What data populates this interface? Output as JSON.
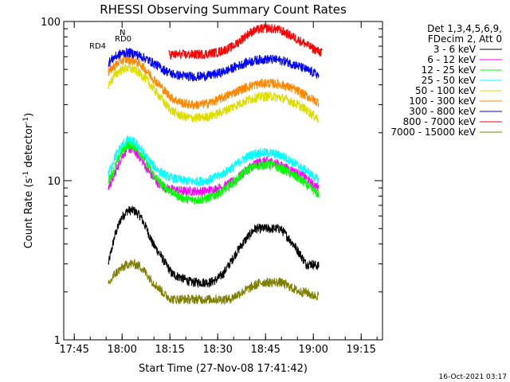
{
  "chart_data": {
    "type": "line",
    "title": "RHESSI Observing Summary Count Rates",
    "xlabel": "Start Time (27-Nov-08 17:41:42)",
    "ylabel_main": "Count Rate (s",
    "ylabel_sup": "-1",
    "ylabel_tail": " detector",
    "ylabel_end": ")",
    "x_unit": "minutes after 17:41:42",
    "xlim": [
      0,
      100
    ],
    "ylim": [
      1,
      100
    ],
    "log_y": true,
    "grid": false,
    "x_ticks": [
      {
        "label": "17:45",
        "t": 3.3
      },
      {
        "label": "18:00",
        "t": 18.3
      },
      {
        "label": "18:15",
        "t": 33.3
      },
      {
        "label": "18:30",
        "t": 48.3
      },
      {
        "label": "18:45",
        "t": 63.3
      },
      {
        "label": "19:00",
        "t": 78.3
      },
      {
        "label": "19:15",
        "t": 93.3
      }
    ],
    "y_ticks": [
      {
        "label": "1",
        "v": 1
      },
      {
        "label": "10",
        "v": 10
      },
      {
        "label": "100",
        "v": 100
      }
    ],
    "legend_header": [
      "Det 1,3,4,5,6,9,",
      "FDecim 2, Att 0"
    ],
    "legend_position": "right",
    "series": [
      {
        "name": "3 - 6 keV",
        "color": "#000000",
        "t": [
          14,
          16,
          18,
          20,
          22,
          24,
          26,
          28,
          30,
          32,
          34,
          36,
          38,
          40,
          42,
          44,
          46,
          48,
          50,
          52,
          54,
          56,
          58,
          60,
          62,
          64,
          66,
          68,
          70,
          72,
          74,
          76,
          78,
          80
        ],
        "v": [
          3,
          4.5,
          5.8,
          6.5,
          6.5,
          6,
          5,
          4,
          3.5,
          3,
          2.6,
          2.5,
          2.4,
          2.3,
          2.3,
          2.3,
          2.3,
          2.4,
          2.6,
          3,
          3.5,
          4,
          4.5,
          5,
          5,
          5,
          5,
          5,
          4.5,
          4,
          3.5,
          3,
          3,
          2.9
        ]
      },
      {
        "name": "6 - 12 keV",
        "color": "#ff00ff",
        "t": [
          14,
          16,
          18,
          20,
          22,
          24,
          26,
          28,
          30,
          32,
          34,
          36,
          38,
          40,
          42,
          44,
          46,
          48,
          50,
          52,
          54,
          56,
          58,
          60,
          62,
          64,
          66,
          68,
          70,
          72,
          74,
          76,
          78,
          80
        ],
        "v": [
          9,
          11,
          14,
          16,
          15.5,
          14,
          12,
          10.5,
          9.5,
          9,
          8.8,
          8.7,
          8.6,
          8.6,
          8.6,
          8.6,
          8.7,
          8.9,
          9.2,
          9.6,
          10.2,
          11,
          12,
          12.8,
          13.2,
          13.3,
          13,
          12.5,
          12,
          11.5,
          11,
          10.5,
          9.5,
          9
        ]
      },
      {
        "name": "12 - 25 keV",
        "color": "#00ff00",
        "t": [
          14,
          16,
          18,
          20,
          22,
          24,
          26,
          28,
          30,
          32,
          34,
          36,
          38,
          40,
          42,
          44,
          46,
          48,
          50,
          52,
          54,
          56,
          58,
          60,
          62,
          64,
          66,
          68,
          70,
          72,
          74,
          76,
          78,
          80
        ],
        "v": [
          10,
          12,
          15,
          17,
          16.5,
          15,
          13,
          11,
          9.8,
          9,
          8.5,
          8,
          7.7,
          7.6,
          7.6,
          7.7,
          7.9,
          8.2,
          8.7,
          9.3,
          10,
          11,
          11.8,
          12.3,
          12.6,
          12.6,
          12.4,
          12,
          11.4,
          10.8,
          10.2,
          9.5,
          8.8,
          8.2
        ]
      },
      {
        "name": "25 - 50 keV",
        "color": "#00ffff",
        "t": [
          14,
          16,
          18,
          20,
          22,
          24,
          26,
          28,
          30,
          32,
          34,
          36,
          38,
          40,
          42,
          44,
          46,
          48,
          50,
          52,
          54,
          56,
          58,
          60,
          62,
          64,
          66,
          68,
          70,
          72,
          74,
          76,
          78,
          80
        ],
        "v": [
          11,
          14,
          16.5,
          18,
          17.5,
          16,
          14,
          12.5,
          11.5,
          10.8,
          10.4,
          10.2,
          10,
          9.9,
          9.9,
          10,
          10.2,
          10.6,
          11.1,
          11.8,
          12.6,
          13.5,
          14.3,
          14.8,
          15,
          15,
          14.8,
          14.4,
          13.8,
          13,
          12.3,
          11.6,
          10.8,
          10
        ]
      },
      {
        "name": "50 - 100 keV",
        "color": "#dddd00",
        "t": [
          14,
          16,
          18,
          20,
          22,
          24,
          26,
          28,
          30,
          32,
          34,
          36,
          38,
          40,
          42,
          44,
          46,
          48,
          50,
          52,
          54,
          56,
          58,
          60,
          62,
          64,
          66,
          68,
          70,
          72,
          74,
          76,
          78,
          80
        ],
        "v": [
          40,
          46,
          50,
          51,
          50,
          47,
          43,
          38,
          34,
          30,
          27.5,
          26,
          25.2,
          24.8,
          24.8,
          25,
          25.5,
          26.3,
          27.3,
          28.5,
          29.8,
          31,
          32.3,
          33.2,
          33.8,
          34,
          33.8,
          33.2,
          32.3,
          31,
          29.5,
          28,
          26,
          24.5
        ]
      },
      {
        "name": "100 - 300 keV",
        "color": "#ff8800",
        "t": [
          14,
          16,
          18,
          20,
          22,
          24,
          26,
          28,
          30,
          32,
          34,
          36,
          38,
          40,
          42,
          44,
          46,
          48,
          50,
          52,
          54,
          56,
          58,
          60,
          62,
          64,
          66,
          68,
          70,
          72,
          74,
          76,
          78,
          80
        ],
        "v": [
          48,
          53,
          57,
          58,
          57,
          54,
          49,
          44,
          40,
          36,
          33,
          31.5,
          30.5,
          30,
          30,
          30.3,
          31,
          32,
          33.3,
          34.8,
          36.3,
          37.8,
          39.2,
          40.2,
          40.8,
          41,
          40.8,
          40.2,
          39.2,
          37.8,
          36,
          34.3,
          32.5,
          31
        ]
      },
      {
        "name": "300 - 800 keV",
        "color": "#0000ff",
        "t": [
          14,
          16,
          18,
          20,
          22,
          24,
          26,
          28,
          30,
          32,
          34,
          36,
          38,
          40,
          42,
          44,
          46,
          48,
          50,
          52,
          54,
          56,
          58,
          60,
          62,
          64,
          66,
          68,
          70,
          72,
          74,
          76,
          78,
          80
        ],
        "v": [
          55,
          60,
          63,
          64,
          63,
          61,
          58,
          55,
          52,
          49,
          47,
          46,
          45.5,
          45.2,
          45.2,
          45.5,
          46,
          47,
          48.3,
          50,
          52,
          54,
          55.8,
          57,
          57.8,
          58,
          57.8,
          57,
          55.8,
          54,
          52,
          50,
          48,
          46
        ]
      },
      {
        "name": "800 - 7000 keV",
        "color": "#ff0000",
        "t": [
          33,
          36,
          40,
          44,
          48,
          52,
          54,
          56,
          58,
          60,
          62,
          64,
          66,
          68,
          70,
          72,
          74,
          76,
          78,
          80,
          81
        ],
        "v": [
          62,
          62,
          62,
          62.5,
          64,
          68,
          72,
          78,
          84,
          88,
          90,
          91,
          90,
          88,
          84,
          80,
          76,
          72,
          68,
          65,
          64
        ]
      },
      {
        "name": "7000 - 15000 keV",
        "color": "#808000",
        "t": [
          14,
          16,
          18,
          20,
          22,
          24,
          26,
          28,
          30,
          32,
          34,
          36,
          38,
          40,
          42,
          44,
          46,
          48,
          50,
          52,
          54,
          56,
          58,
          60,
          62,
          64,
          66,
          68,
          70,
          72,
          74,
          76,
          78,
          80
        ],
        "v": [
          2.2,
          2.6,
          2.8,
          3,
          3,
          2.9,
          2.6,
          2.3,
          2.1,
          1.9,
          1.8,
          1.8,
          1.8,
          1.8,
          1.8,
          1.8,
          1.8,
          1.8,
          1.8,
          1.8,
          1.9,
          2,
          2.1,
          2.2,
          2.3,
          2.3,
          2.3,
          2.3,
          2.2,
          2.1,
          2,
          2,
          1.9,
          1.9
        ]
      }
    ],
    "annotations": [
      {
        "label": "N",
        "color": "#00ffff"
      },
      {
        "label": "RD0",
        "color": "#008000"
      },
      {
        "label": "RD4",
        "color": "#008000"
      }
    ],
    "footer_stamp": "16-Oct-2021 03:17"
  }
}
